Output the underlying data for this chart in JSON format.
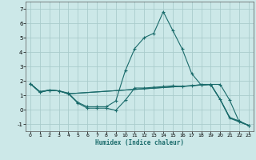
{
  "xlabel": "Humidex (Indice chaleur)",
  "xlim": [
    -0.5,
    23.5
  ],
  "ylim": [
    -1.5,
    7.5
  ],
  "yticks": [
    -1,
    0,
    1,
    2,
    3,
    4,
    5,
    6,
    7
  ],
  "xticks": [
    0,
    1,
    2,
    3,
    4,
    5,
    6,
    7,
    8,
    9,
    10,
    11,
    12,
    13,
    14,
    15,
    16,
    17,
    18,
    19,
    20,
    21,
    22,
    23
  ],
  "bg_color": "#cce8e8",
  "grid_color": "#aacccc",
  "line_color": "#1a6b6b",
  "lines": [
    {
      "x": [
        0,
        1,
        2,
        3,
        4,
        5,
        6,
        7,
        8,
        9,
        10,
        11,
        12,
        13,
        14,
        15,
        16,
        17,
        18,
        19,
        20,
        21,
        22,
        23
      ],
      "y": [
        1.8,
        1.25,
        1.35,
        1.3,
        1.1,
        0.45,
        0.1,
        0.1,
        0.1,
        -0.05,
        0.65,
        1.5,
        1.5,
        1.55,
        1.6,
        1.65,
        1.6,
        1.65,
        1.75,
        1.75,
        0.7,
        -0.55,
        -0.8,
        -1.1
      ],
      "markers": true
    },
    {
      "x": [
        0,
        1,
        2,
        3,
        4,
        5,
        6,
        7,
        8,
        9,
        10,
        11,
        12,
        13,
        14,
        15,
        16,
        17,
        18,
        19,
        20,
        21,
        22,
        23
      ],
      "y": [
        1.8,
        1.2,
        1.35,
        1.3,
        1.15,
        0.5,
        0.2,
        0.2,
        0.2,
        0.6,
        2.7,
        4.25,
        5.0,
        5.3,
        6.8,
        5.5,
        4.2,
        2.5,
        1.7,
        1.75,
        1.75,
        0.65,
        -0.85,
        -1.1
      ],
      "markers": true
    },
    {
      "x": [
        0,
        1,
        2,
        3,
        4,
        19,
        20,
        21,
        22,
        23
      ],
      "y": [
        1.8,
        1.25,
        1.35,
        1.3,
        1.1,
        1.75,
        0.7,
        -0.55,
        -0.8,
        -1.1
      ],
      "markers": false
    },
    {
      "x": [
        0,
        1,
        2,
        3,
        4,
        19,
        20,
        21,
        22,
        23
      ],
      "y": [
        1.8,
        1.2,
        1.35,
        1.3,
        1.1,
        1.75,
        0.7,
        -0.6,
        -0.85,
        -1.1
      ],
      "markers": false
    }
  ]
}
